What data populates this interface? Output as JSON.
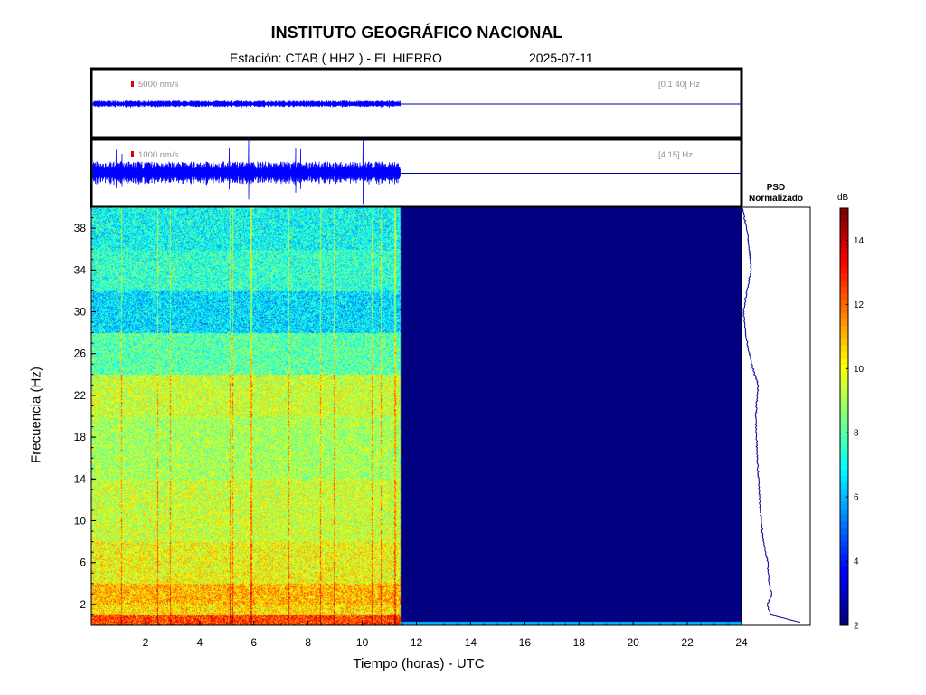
{
  "header": {
    "title": "INSTITUTO GEOGRÁFICO NACIONAL",
    "station": "Estación:  CTAB ( HHZ ) - EL HIERRO",
    "date": "2025-07-11"
  },
  "traces": [
    {
      "scale_label": "5000 nm/s",
      "band_label": "[0.1 40] Hz",
      "data_end_hour": 11.4,
      "relative_amplitude": 0.1
    },
    {
      "scale_label": "1000 nm/s",
      "band_label": "[4 15] Hz",
      "data_end_hour": 11.4,
      "relative_amplitude": 0.35
    }
  ],
  "psd_panel": {
    "title_line1": "PSD",
    "title_line2": "Normalizado"
  },
  "colorbar": {
    "unit": "dB",
    "ticks": [
      2,
      4,
      6,
      8,
      10,
      12,
      14
    ],
    "range": [
      2,
      15
    ],
    "colormap": "jet"
  },
  "chart_data": {
    "type": "heatmap",
    "title": "INSTITUTO GEOGRÁFICO NACIONAL",
    "subtitle": "Estación:  CTAB ( HHZ ) - EL HIERRO 2025-07-11",
    "xlabel": "Tiempo (horas) - UTC",
    "ylabel": "Frecuencia  (Hz)",
    "xlim": [
      0,
      24
    ],
    "ylim": [
      0,
      40
    ],
    "xticks": [
      2,
      4,
      6,
      8,
      10,
      12,
      14,
      16,
      18,
      20,
      22,
      24
    ],
    "yticks": [
      2,
      6,
      10,
      14,
      18,
      22,
      26,
      30,
      34,
      38
    ],
    "data_end_hour": 11.4,
    "no_data_level_db": 2,
    "frequency_bands_db": [
      {
        "from_hz": 0,
        "to_hz": 1,
        "db": 12.5
      },
      {
        "from_hz": 1,
        "to_hz": 2,
        "db": 10.5
      },
      {
        "from_hz": 2,
        "to_hz": 4,
        "db": 11
      },
      {
        "from_hz": 4,
        "to_hz": 8,
        "db": 10
      },
      {
        "from_hz": 8,
        "to_hz": 14,
        "db": 9.5
      },
      {
        "from_hz": 14,
        "to_hz": 20,
        "db": 9
      },
      {
        "from_hz": 20,
        "to_hz": 24,
        "db": 9.5
      },
      {
        "from_hz": 24,
        "to_hz": 28,
        "db": 8
      },
      {
        "from_hz": 28,
        "to_hz": 32,
        "db": 6.5
      },
      {
        "from_hz": 32,
        "to_hz": 36,
        "db": 7.5
      },
      {
        "from_hz": 36,
        "to_hz": 40,
        "db": 7
      }
    ],
    "psd_normalized": {
      "frequency_hz": [
        0.3,
        1,
        2,
        3,
        4,
        6,
        8,
        10,
        12,
        14,
        16,
        18,
        20,
        22,
        23,
        24,
        26,
        28,
        30,
        32,
        34,
        36,
        38,
        40
      ],
      "value": [
        0.9,
        0.45,
        0.4,
        0.47,
        0.42,
        0.4,
        0.34,
        0.3,
        0.28,
        0.26,
        0.24,
        0.23,
        0.22,
        0.24,
        0.26,
        0.2,
        0.12,
        0.06,
        0.03,
        0.08,
        0.15,
        0.12,
        0.08,
        0.01
      ]
    }
  }
}
